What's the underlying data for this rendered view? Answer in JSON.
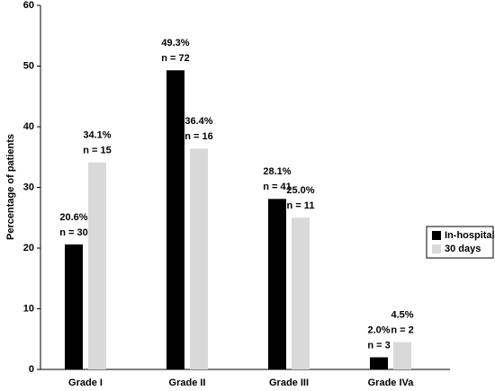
{
  "chart_data": {
    "type": "bar",
    "y_label": "Percentage of patients",
    "categories": [
      "Grade I",
      "Grade II",
      "Grade III",
      "Grade IVa"
    ],
    "series": [
      {
        "name": "In-hospital",
        "color": "#000000",
        "values": [
          20.6,
          49.3,
          28.1,
          2.0
        ],
        "value_labels": [
          "20.6%",
          "49.3%",
          "28.1%",
          "2.0%"
        ],
        "n_labels": [
          "n = 30",
          "n = 72",
          "n = 41",
          "n = 3"
        ]
      },
      {
        "name": "30 days",
        "color": "#d9d9d9",
        "values": [
          34.1,
          36.4,
          25.0,
          4.5
        ],
        "value_labels": [
          "34.1%",
          "36.4%",
          "25.0%",
          "4.5%"
        ],
        "n_labels": [
          "n = 15",
          "n = 16",
          "n = 11",
          "n = 2"
        ]
      }
    ],
    "ylim": [
      0,
      60
    ],
    "yticks": [
      0,
      10,
      20,
      30,
      40,
      50,
      60
    ],
    "legend": "right"
  }
}
